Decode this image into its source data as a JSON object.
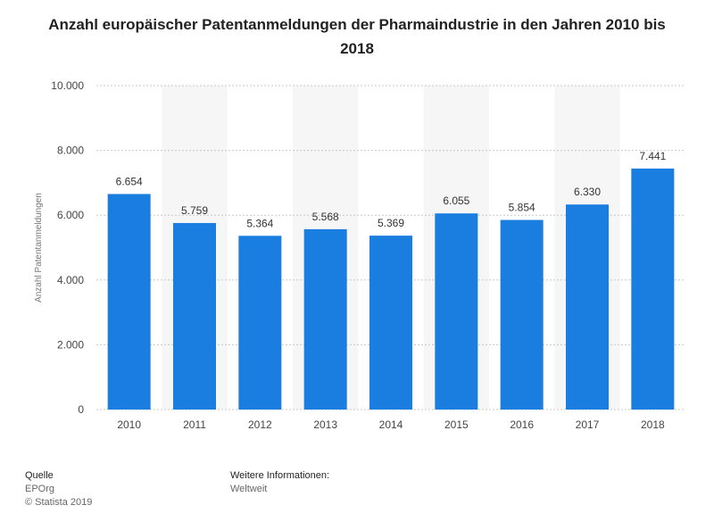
{
  "chart_data": {
    "type": "bar",
    "title": "Anzahl europäischer Patentanmeldungen der Pharmaindustrie in den Jahren 2010 bis 2018",
    "xlabel": "",
    "ylabel": "Anzahl Patentanmeldungen",
    "categories": [
      "2010",
      "2011",
      "2012",
      "2013",
      "2014",
      "2015",
      "2016",
      "2017",
      "2018"
    ],
    "values": [
      6654,
      5759,
      5364,
      5568,
      5369,
      6055,
      5854,
      6330,
      7441
    ],
    "value_labels": [
      "6.654",
      "5.759",
      "5.364",
      "5.568",
      "5.369",
      "6.055",
      "5.854",
      "6.330",
      "7.441"
    ],
    "ylim": [
      0,
      10000
    ],
    "yticks": [
      0,
      2000,
      4000,
      6000,
      8000,
      10000
    ],
    "ytick_labels": [
      "0",
      "2.000",
      "4.000",
      "6.000",
      "8.000",
      "10.000"
    ],
    "grid": true,
    "bar_color": "#1a7de0"
  },
  "footer": {
    "source_heading": "Quelle",
    "source_name": "EPOrg",
    "copyright": "© Statista 2019",
    "info_heading": "Weitere Informationen:",
    "info_value": "Weltweit"
  }
}
